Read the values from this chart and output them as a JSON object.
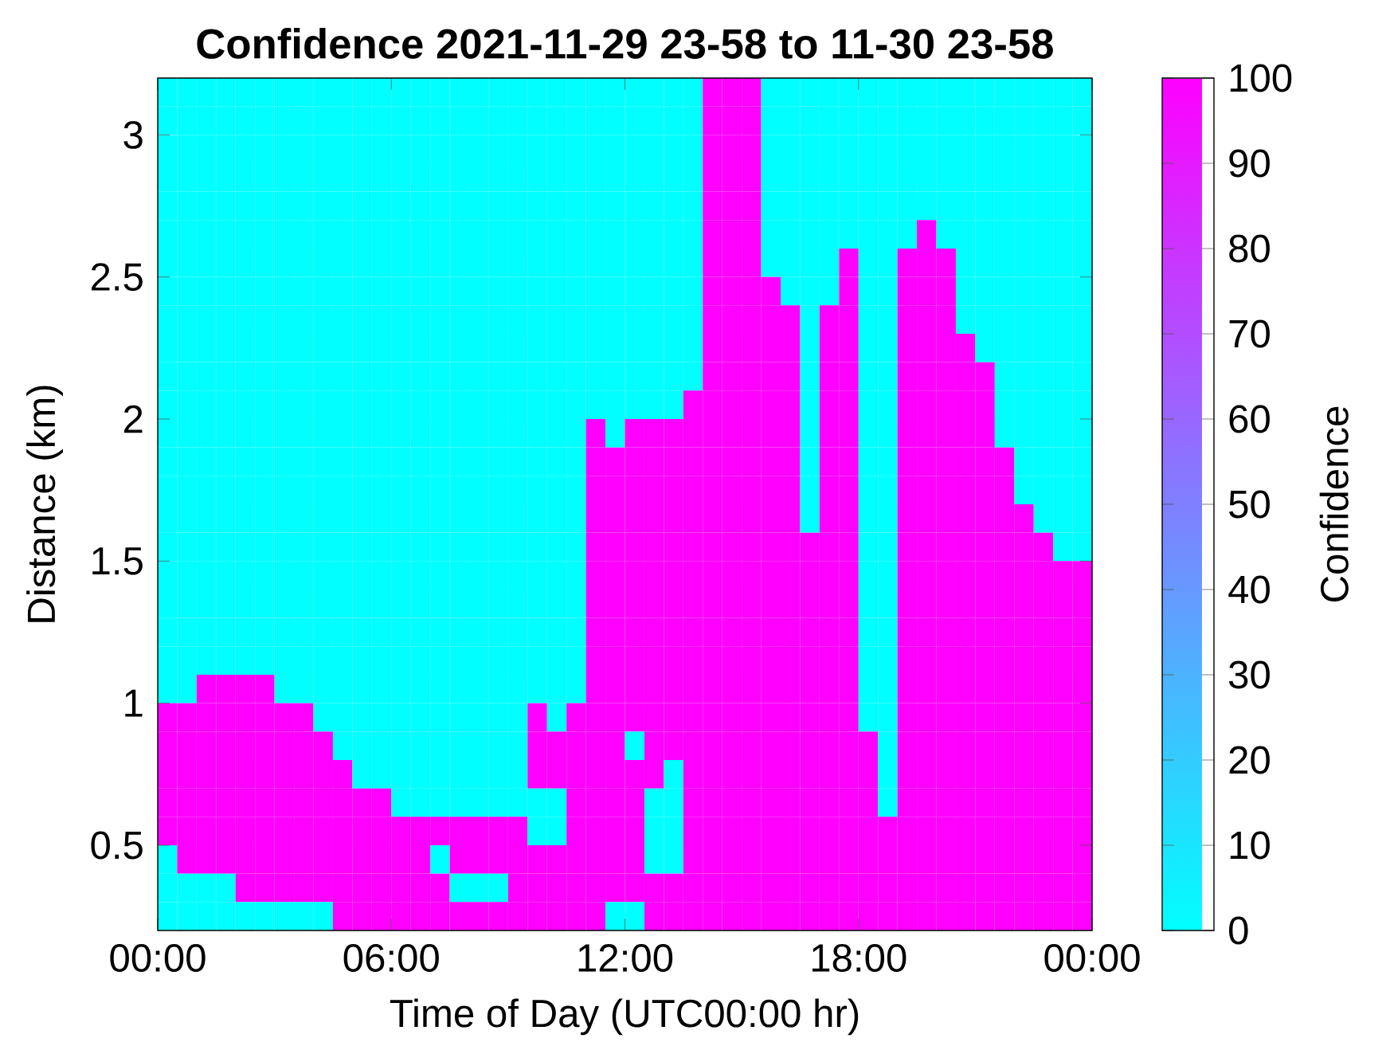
{
  "chart_data": {
    "type": "heatmap",
    "title": "Confidence 2021-11-29 23-58 to 11-30 23-58",
    "xlabel": "Time of Day (UTC00:00 hr)",
    "ylabel": "Distance (km)",
    "clabel": "Confidence",
    "x": [
      0.25,
      0.75,
      1.25,
      1.75,
      2.25,
      2.75,
      3.25,
      3.75,
      4.25,
      4.75,
      5.25,
      5.75,
      6.25,
      6.75,
      7.25,
      7.75,
      8.25,
      8.75,
      9.25,
      9.75,
      10.25,
      10.75,
      11.25,
      11.75,
      12.25,
      12.75,
      13.25,
      13.75,
      14.25,
      14.75,
      15.25,
      15.75,
      16.25,
      16.75,
      17.25,
      17.75,
      18.25,
      18.75,
      19.25,
      19.75,
      20.25,
      20.75,
      21.25,
      21.75,
      22.25,
      22.75,
      23.25,
      23.75
    ],
    "y": [
      3.15,
      3.05,
      2.95,
      2.85,
      2.75,
      2.65,
      2.55,
      2.45,
      2.35,
      2.25,
      2.15,
      2.05,
      1.95,
      1.85,
      1.75,
      1.65,
      1.55,
      1.45,
      1.35,
      1.25,
      1.15,
      1.05,
      0.95,
      0.85,
      0.75,
      0.65,
      0.55,
      0.45,
      0.35,
      0.25
    ],
    "cells": [
      [
        0,
        0,
        0,
        0,
        0,
        0,
        0,
        0,
        0,
        0,
        0,
        0,
        0,
        0,
        0,
        0,
        0,
        0,
        0,
        0,
        0,
        0,
        0,
        0,
        0,
        0,
        0,
        0,
        100,
        100,
        100,
        0,
        0,
        0,
        0,
        0,
        0,
        0,
        0,
        0,
        0,
        0,
        0,
        0,
        0,
        0,
        0,
        0
      ],
      [
        0,
        0,
        0,
        0,
        0,
        0,
        0,
        0,
        0,
        0,
        0,
        0,
        0,
        0,
        0,
        0,
        0,
        0,
        0,
        0,
        0,
        0,
        0,
        0,
        0,
        0,
        0,
        0,
        100,
        100,
        100,
        0,
        0,
        0,
        0,
        0,
        0,
        0,
        0,
        0,
        0,
        0,
        0,
        0,
        0,
        0,
        0,
        0
      ],
      [
        0,
        0,
        0,
        0,
        0,
        0,
        0,
        0,
        0,
        0,
        0,
        0,
        0,
        0,
        0,
        0,
        0,
        0,
        0,
        0,
        0,
        0,
        0,
        0,
        0,
        0,
        0,
        0,
        100,
        100,
        100,
        0,
        0,
        0,
        0,
        0,
        0,
        0,
        0,
        0,
        0,
        0,
        0,
        0,
        0,
        0,
        0,
        0
      ],
      [
        0,
        0,
        0,
        0,
        0,
        0,
        0,
        0,
        0,
        0,
        0,
        0,
        0,
        0,
        0,
        0,
        0,
        0,
        0,
        0,
        0,
        0,
        0,
        0,
        0,
        0,
        0,
        0,
        100,
        100,
        100,
        0,
        0,
        0,
        0,
        0,
        0,
        0,
        0,
        0,
        0,
        0,
        0,
        0,
        0,
        0,
        0,
        0
      ],
      [
        0,
        0,
        0,
        0,
        0,
        0,
        0,
        0,
        0,
        0,
        0,
        0,
        0,
        0,
        0,
        0,
        0,
        0,
        0,
        0,
        0,
        0,
        0,
        0,
        0,
        0,
        0,
        0,
        100,
        100,
        100,
        0,
        0,
        0,
        0,
        0,
        0,
        0,
        0,
        0,
        0,
        0,
        0,
        0,
        0,
        0,
        0,
        0
      ],
      [
        0,
        0,
        0,
        0,
        0,
        0,
        0,
        0,
        0,
        0,
        0,
        0,
        0,
        0,
        0,
        0,
        0,
        0,
        0,
        0,
        0,
        0,
        0,
        0,
        0,
        0,
        0,
        0,
        100,
        100,
        100,
        0,
        0,
        0,
        0,
        0,
        0,
        0,
        0,
        100,
        0,
        0,
        0,
        0,
        0,
        0,
        0,
        0
      ],
      [
        0,
        0,
        0,
        0,
        0,
        0,
        0,
        0,
        0,
        0,
        0,
        0,
        0,
        0,
        0,
        0,
        0,
        0,
        0,
        0,
        0,
        0,
        0,
        0,
        0,
        0,
        0,
        0,
        100,
        100,
        100,
        0,
        0,
        0,
        0,
        100,
        0,
        0,
        100,
        100,
        100,
        0,
        0,
        0,
        0,
        0,
        0,
        0
      ],
      [
        0,
        0,
        0,
        0,
        0,
        0,
        0,
        0,
        0,
        0,
        0,
        0,
        0,
        0,
        0,
        0,
        0,
        0,
        0,
        0,
        0,
        0,
        0,
        0,
        0,
        0,
        0,
        0,
        100,
        100,
        100,
        100,
        0,
        0,
        0,
        100,
        0,
        0,
        100,
        100,
        100,
        0,
        0,
        0,
        0,
        0,
        0,
        0
      ],
      [
        0,
        0,
        0,
        0,
        0,
        0,
        0,
        0,
        0,
        0,
        0,
        0,
        0,
        0,
        0,
        0,
        0,
        0,
        0,
        0,
        0,
        0,
        0,
        0,
        0,
        0,
        0,
        0,
        100,
        100,
        100,
        100,
        100,
        0,
        100,
        100,
        0,
        0,
        100,
        100,
        100,
        0,
        0,
        0,
        0,
        0,
        0,
        0
      ],
      [
        0,
        0,
        0,
        0,
        0,
        0,
        0,
        0,
        0,
        0,
        0,
        0,
        0,
        0,
        0,
        0,
        0,
        0,
        0,
        0,
        0,
        0,
        0,
        0,
        0,
        0,
        0,
        0,
        100,
        100,
        100,
        100,
        100,
        0,
        100,
        100,
        0,
        0,
        100,
        100,
        100,
        100,
        0,
        0,
        0,
        0,
        0,
        0
      ],
      [
        0,
        0,
        0,
        0,
        0,
        0,
        0,
        0,
        0,
        0,
        0,
        0,
        0,
        0,
        0,
        0,
        0,
        0,
        0,
        0,
        0,
        0,
        0,
        0,
        0,
        0,
        0,
        0,
        100,
        100,
        100,
        100,
        100,
        0,
        100,
        100,
        0,
        0,
        100,
        100,
        100,
        100,
        100,
        0,
        0,
        0,
        0,
        0
      ],
      [
        0,
        0,
        0,
        0,
        0,
        0,
        0,
        0,
        0,
        0,
        0,
        0,
        0,
        0,
        0,
        0,
        0,
        0,
        0,
        0,
        0,
        0,
        0,
        0,
        0,
        0,
        0,
        100,
        100,
        100,
        100,
        100,
        100,
        0,
        100,
        100,
        0,
        0,
        100,
        100,
        100,
        100,
        100,
        0,
        0,
        0,
        0,
        0
      ],
      [
        0,
        0,
        0,
        0,
        0,
        0,
        0,
        0,
        0,
        0,
        0,
        0,
        0,
        0,
        0,
        0,
        0,
        0,
        0,
        0,
        0,
        0,
        100,
        0,
        100,
        100,
        100,
        100,
        100,
        100,
        100,
        100,
        100,
        0,
        100,
        100,
        0,
        0,
        100,
        100,
        100,
        100,
        100,
        0,
        0,
        0,
        0,
        0
      ],
      [
        0,
        0,
        0,
        0,
        0,
        0,
        0,
        0,
        0,
        0,
        0,
        0,
        0,
        0,
        0,
        0,
        0,
        0,
        0,
        0,
        0,
        0,
        100,
        100,
        100,
        100,
        100,
        100,
        100,
        100,
        100,
        100,
        100,
        0,
        100,
        100,
        0,
        0,
        100,
        100,
        100,
        100,
        100,
        100,
        0,
        0,
        0,
        0
      ],
      [
        0,
        0,
        0,
        0,
        0,
        0,
        0,
        0,
        0,
        0,
        0,
        0,
        0,
        0,
        0,
        0,
        0,
        0,
        0,
        0,
        0,
        0,
        100,
        100,
        100,
        100,
        100,
        100,
        100,
        100,
        100,
        100,
        100,
        0,
        100,
        100,
        0,
        0,
        100,
        100,
        100,
        100,
        100,
        100,
        0,
        0,
        0,
        0
      ],
      [
        0,
        0,
        0,
        0,
        0,
        0,
        0,
        0,
        0,
        0,
        0,
        0,
        0,
        0,
        0,
        0,
        0,
        0,
        0,
        0,
        0,
        0,
        100,
        100,
        100,
        100,
        100,
        100,
        100,
        100,
        100,
        100,
        100,
        0,
        100,
        100,
        0,
        0,
        100,
        100,
        100,
        100,
        100,
        100,
        100,
        0,
        0,
        0
      ],
      [
        0,
        0,
        0,
        0,
        0,
        0,
        0,
        0,
        0,
        0,
        0,
        0,
        0,
        0,
        0,
        0,
        0,
        0,
        0,
        0,
        0,
        0,
        100,
        100,
        100,
        100,
        100,
        100,
        100,
        100,
        100,
        100,
        100,
        100,
        100,
        100,
        0,
        0,
        100,
        100,
        100,
        100,
        100,
        100,
        100,
        100,
        0,
        0
      ],
      [
        0,
        0,
        0,
        0,
        0,
        0,
        0,
        0,
        0,
        0,
        0,
        0,
        0,
        0,
        0,
        0,
        0,
        0,
        0,
        0,
        0,
        0,
        100,
        100,
        100,
        100,
        100,
        100,
        100,
        100,
        100,
        100,
        100,
        100,
        100,
        100,
        0,
        0,
        100,
        100,
        100,
        100,
        100,
        100,
        100,
        100,
        100,
        100
      ],
      [
        0,
        0,
        0,
        0,
        0,
        0,
        0,
        0,
        0,
        0,
        0,
        0,
        0,
        0,
        0,
        0,
        0,
        0,
        0,
        0,
        0,
        0,
        100,
        100,
        100,
        100,
        100,
        100,
        100,
        100,
        100,
        100,
        100,
        100,
        100,
        100,
        0,
        0,
        100,
        100,
        100,
        100,
        100,
        100,
        100,
        100,
        100,
        100
      ],
      [
        0,
        0,
        0,
        0,
        0,
        0,
        0,
        0,
        0,
        0,
        0,
        0,
        0,
        0,
        0,
        0,
        0,
        0,
        0,
        0,
        0,
        0,
        100,
        100,
        100,
        100,
        100,
        100,
        100,
        100,
        100,
        100,
        100,
        100,
        100,
        100,
        0,
        0,
        100,
        100,
        100,
        100,
        100,
        100,
        100,
        100,
        100,
        100
      ],
      [
        0,
        0,
        0,
        0,
        0,
        0,
        0,
        0,
        0,
        0,
        0,
        0,
        0,
        0,
        0,
        0,
        0,
        0,
        0,
        0,
        0,
        0,
        100,
        100,
        100,
        100,
        100,
        100,
        100,
        100,
        100,
        100,
        100,
        100,
        100,
        100,
        0,
        0,
        100,
        100,
        100,
        100,
        100,
        100,
        100,
        100,
        100,
        100
      ],
      [
        0,
        0,
        100,
        100,
        100,
        100,
        0,
        0,
        0,
        0,
        0,
        0,
        0,
        0,
        0,
        0,
        0,
        0,
        0,
        0,
        0,
        0,
        100,
        100,
        100,
        100,
        100,
        100,
        100,
        100,
        100,
        100,
        100,
        100,
        100,
        100,
        0,
        0,
        100,
        100,
        100,
        100,
        100,
        100,
        100,
        100,
        100,
        100
      ],
      [
        100,
        100,
        100,
        100,
        100,
        100,
        100,
        100,
        0,
        0,
        0,
        0,
        0,
        0,
        0,
        0,
        0,
        0,
        0,
        100,
        0,
        100,
        100,
        100,
        100,
        100,
        100,
        100,
        100,
        100,
        100,
        100,
        100,
        100,
        100,
        100,
        0,
        0,
        100,
        100,
        100,
        100,
        100,
        100,
        100,
        100,
        100,
        100
      ],
      [
        100,
        100,
        100,
        100,
        100,
        100,
        100,
        100,
        100,
        0,
        0,
        0,
        0,
        0,
        0,
        0,
        0,
        0,
        0,
        100,
        100,
        100,
        100,
        100,
        0,
        100,
        100,
        100,
        100,
        100,
        100,
        100,
        100,
        100,
        100,
        100,
        100,
        0,
        100,
        100,
        100,
        100,
        100,
        100,
        100,
        100,
        100,
        100
      ],
      [
        100,
        100,
        100,
        100,
        100,
        100,
        100,
        100,
        100,
        100,
        0,
        0,
        0,
        0,
        0,
        0,
        0,
        0,
        0,
        100,
        100,
        100,
        100,
        100,
        100,
        100,
        0,
        100,
        100,
        100,
        100,
        100,
        100,
        100,
        100,
        100,
        100,
        0,
        100,
        100,
        100,
        100,
        100,
        100,
        100,
        100,
        100,
        100
      ],
      [
        100,
        100,
        100,
        100,
        100,
        100,
        100,
        100,
        100,
        100,
        100,
        100,
        0,
        0,
        0,
        0,
        0,
        0,
        0,
        0,
        0,
        100,
        100,
        100,
        100,
        0,
        0,
        100,
        100,
        100,
        100,
        100,
        100,
        100,
        100,
        100,
        100,
        0,
        100,
        100,
        100,
        100,
        100,
        100,
        100,
        100,
        100,
        100
      ],
      [
        100,
        100,
        100,
        100,
        100,
        100,
        100,
        100,
        100,
        100,
        100,
        100,
        100,
        100,
        100,
        100,
        100,
        100,
        100,
        0,
        0,
        100,
        100,
        100,
        100,
        0,
        0,
        100,
        100,
        100,
        100,
        100,
        100,
        100,
        100,
        100,
        100,
        100,
        100,
        100,
        100,
        100,
        100,
        100,
        100,
        100,
        100,
        100
      ],
      [
        0,
        100,
        100,
        100,
        100,
        100,
        100,
        100,
        100,
        100,
        100,
        100,
        100,
        100,
        0,
        100,
        100,
        100,
        100,
        100,
        100,
        100,
        100,
        100,
        100,
        0,
        0,
        100,
        100,
        100,
        100,
        100,
        100,
        100,
        100,
        100,
        100,
        100,
        100,
        100,
        100,
        100,
        100,
        100,
        100,
        100,
        100,
        100
      ],
      [
        0,
        0,
        0,
        0,
        100,
        100,
        100,
        100,
        100,
        100,
        100,
        100,
        100,
        100,
        100,
        0,
        0,
        0,
        100,
        100,
        100,
        100,
        100,
        100,
        100,
        100,
        100,
        100,
        100,
        100,
        100,
        100,
        100,
        100,
        100,
        100,
        100,
        100,
        100,
        100,
        100,
        100,
        100,
        100,
        100,
        100,
        100,
        100
      ],
      [
        0,
        0,
        0,
        0,
        0,
        0,
        0,
        0,
        0,
        100,
        100,
        100,
        100,
        100,
        100,
        100,
        100,
        100,
        100,
        100,
        100,
        100,
        100,
        0,
        0,
        100,
        100,
        100,
        100,
        100,
        100,
        100,
        100,
        100,
        100,
        100,
        100,
        100,
        100,
        100,
        100,
        100,
        100,
        100,
        100,
        100,
        100,
        100
      ]
    ],
    "clim": [
      0,
      100
    ],
    "cticks": [
      0,
      10,
      20,
      30,
      40,
      50,
      60,
      70,
      80,
      90,
      100
    ],
    "xlim": [
      0,
      24
    ],
    "xticks": [
      {
        "value": 0,
        "label": "00:00"
      },
      {
        "value": 6,
        "label": "06:00"
      },
      {
        "value": 12,
        "label": "12:00"
      },
      {
        "value": 18,
        "label": "18:00"
      },
      {
        "value": 24,
        "label": "00:00"
      }
    ],
    "ylim": [
      0.2,
      3.2
    ],
    "yticks": [
      0.5,
      1,
      1.5,
      2,
      2.5,
      3
    ]
  }
}
